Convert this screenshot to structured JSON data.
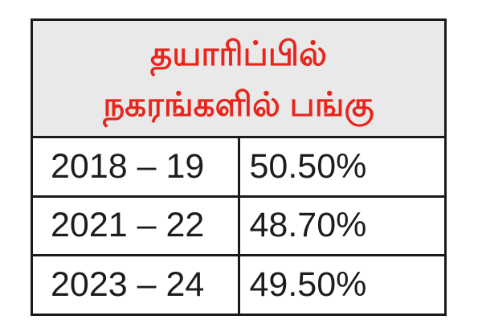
{
  "colors": {
    "page_bg": "#ffffff",
    "header_bg": "#e9e9e9",
    "header_text": "#e8251c",
    "cell_text": "#1d1d1d",
    "border": "#1a1a1a"
  },
  "header": {
    "line1": "தயாரிப்பில்",
    "line2": "நகரங்களில் பங்கு"
  },
  "table": {
    "rows": [
      {
        "period": "2018 – 19",
        "value": "50.50%"
      },
      {
        "period": "2021 – 22",
        "value": "48.70%"
      },
      {
        "period": "2023 – 24",
        "value": "49.50%"
      }
    ]
  },
  "chart_data": {
    "type": "table",
    "title": "தயாரிப்பில் நகரங்களில் பங்கு",
    "title_lines": [
      "தயாரிப்பில்",
      "நகரங்களில் பங்கு"
    ],
    "categories": [
      "2018 – 19",
      "2021 – 22",
      "2023 – 24"
    ],
    "values": [
      50.5,
      48.7,
      49.5
    ],
    "value_labels": [
      "50.50%",
      "48.70%",
      "49.50%"
    ],
    "unit": "%",
    "layout": "two-column table, merged title cell spanning both columns, title red bold on light-gray, body black on white, thick dark collapsed borders"
  }
}
